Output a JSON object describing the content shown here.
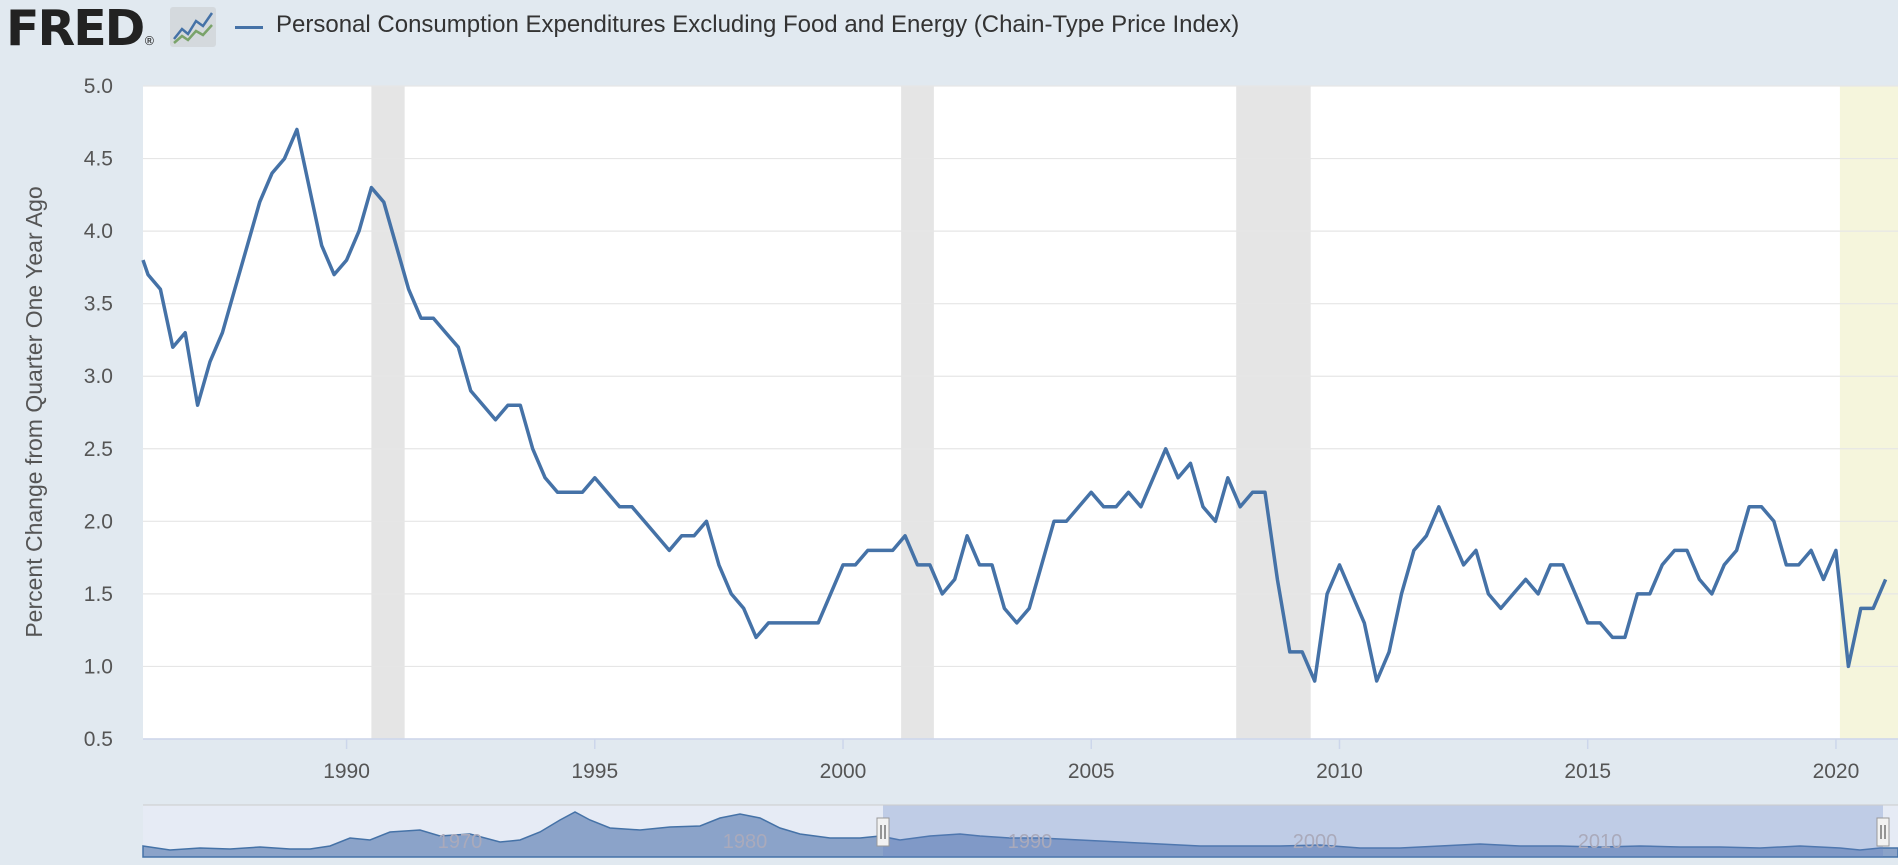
{
  "header": {
    "logo_text": "FRED",
    "logo_reg": "®",
    "logo_graph_icon": "line-chart-icon",
    "legend_title": "Personal Consumption Expenditures Excluding Food and Energy (Chain-Type Price Index)"
  },
  "colors": {
    "series": "#4572a7",
    "recession": "#e5e5e5",
    "highlight": "#f5f5dc",
    "grid": "#e6e6e6",
    "background": "#e1e9f0"
  },
  "chart_data": {
    "type": "line",
    "title": "Personal Consumption Expenditures Excluding Food and Energy (Chain-Type Price Index)",
    "xlabel": "",
    "ylabel": "Percent Change from Quarter One Year Ago",
    "xlim": [
      1985.9,
      2021.25
    ],
    "ylim": [
      0.5,
      5.0
    ],
    "y_ticks": [
      "0.5",
      "1.0",
      "1.5",
      "2.0",
      "2.5",
      "3.0",
      "3.5",
      "4.0",
      "4.5",
      "5.0"
    ],
    "x_ticks": [
      "1990",
      "1995",
      "2000",
      "2005",
      "2010",
      "2015",
      "2020"
    ],
    "grid": true,
    "legend_position": "top-left",
    "recessions": [
      [
        1990.5,
        1991.17
      ],
      [
        2001.17,
        2001.83
      ],
      [
        2007.92,
        2009.42
      ]
    ],
    "highlight_region": [
      2020.08,
      2021.25
    ],
    "series": [
      {
        "name": "Personal Consumption Expenditures Excluding Food and Energy (Chain-Type Price Index)",
        "x": [
          1985.9,
          1986.0,
          1986.25,
          1986.5,
          1986.75,
          1987.0,
          1987.25,
          1987.5,
          1987.75,
          1988.0,
          1988.25,
          1988.5,
          1988.75,
          1989.0,
          1989.25,
          1989.5,
          1989.75,
          1990.0,
          1990.25,
          1990.5,
          1990.75,
          1991.0,
          1991.25,
          1991.5,
          1991.75,
          1992.0,
          1992.25,
          1992.5,
          1992.75,
          1993.0,
          1993.25,
          1993.5,
          1993.75,
          1994.0,
          1994.25,
          1994.5,
          1994.75,
          1995.0,
          1995.25,
          1995.5,
          1995.75,
          1996.0,
          1996.25,
          1996.5,
          1996.75,
          1997.0,
          1997.25,
          1997.5,
          1997.75,
          1998.0,
          1998.25,
          1998.5,
          1998.75,
          1999.0,
          1999.25,
          1999.5,
          1999.75,
          2000.0,
          2000.25,
          2000.5,
          2000.75,
          2001.0,
          2001.25,
          2001.5,
          2001.75,
          2002.0,
          2002.25,
          2002.5,
          2002.75,
          2003.0,
          2003.25,
          2003.5,
          2003.75,
          2004.0,
          2004.25,
          2004.5,
          2004.75,
          2005.0,
          2005.25,
          2005.5,
          2005.75,
          2006.0,
          2006.25,
          2006.5,
          2006.75,
          2007.0,
          2007.25,
          2007.5,
          2007.75,
          2008.0,
          2008.25,
          2008.5,
          2008.75,
          2009.0,
          2009.25,
          2009.5,
          2009.75,
          2010.0,
          2010.25,
          2010.5,
          2010.75,
          2011.0,
          2011.25,
          2011.5,
          2011.75,
          2012.0,
          2012.25,
          2012.5,
          2012.75,
          2013.0,
          2013.25,
          2013.5,
          2013.75,
          2014.0,
          2014.25,
          2014.5,
          2014.75,
          2015.0,
          2015.25,
          2015.5,
          2015.75,
          2016.0,
          2016.25,
          2016.5,
          2016.75,
          2017.0,
          2017.25,
          2017.5,
          2017.75,
          2018.0,
          2018.25,
          2018.5,
          2018.75,
          2019.0,
          2019.25,
          2019.5,
          2019.75,
          2020.0,
          2020.25,
          2020.5,
          2020.75,
          2021.0
        ],
        "y": [
          3.8,
          3.7,
          3.6,
          3.2,
          3.3,
          2.8,
          3.1,
          3.3,
          3.6,
          3.9,
          4.2,
          4.4,
          4.5,
          4.7,
          4.3,
          3.9,
          3.7,
          3.8,
          4.0,
          4.3,
          4.2,
          3.9,
          3.6,
          3.4,
          3.4,
          3.3,
          3.2,
          2.9,
          2.8,
          2.7,
          2.8,
          2.8,
          2.5,
          2.3,
          2.2,
          2.2,
          2.2,
          2.3,
          2.2,
          2.1,
          2.1,
          2.0,
          1.9,
          1.8,
          1.9,
          1.9,
          2.0,
          1.7,
          1.5,
          1.4,
          1.2,
          1.3,
          1.3,
          1.3,
          1.3,
          1.3,
          1.5,
          1.7,
          1.7,
          1.8,
          1.8,
          1.8,
          1.9,
          1.7,
          1.7,
          1.5,
          1.6,
          1.9,
          1.7,
          1.7,
          1.4,
          1.3,
          1.4,
          1.7,
          2.0,
          2.0,
          2.1,
          2.2,
          2.1,
          2.1,
          2.2,
          2.1,
          2.3,
          2.5,
          2.3,
          2.4,
          2.1,
          2.0,
          2.3,
          2.1,
          2.2,
          2.2,
          1.6,
          1.1,
          1.1,
          0.9,
          1.5,
          1.7,
          1.5,
          1.3,
          0.9,
          1.1,
          1.5,
          1.8,
          1.9,
          2.1,
          1.9,
          1.7,
          1.8,
          1.5,
          1.4,
          1.5,
          1.6,
          1.5,
          1.7,
          1.7,
          1.5,
          1.3,
          1.3,
          1.2,
          1.2,
          1.5,
          1.5,
          1.7,
          1.8,
          1.8,
          1.6,
          1.5,
          1.7,
          1.8,
          2.1,
          2.1,
          2.0,
          1.7,
          1.7,
          1.8,
          1.6,
          1.8,
          1.0,
          1.4,
          1.4,
          1.6
        ]
      }
    ]
  },
  "navigator": {
    "labels": [
      "1970",
      "1980",
      "1990",
      "2000",
      "2010"
    ],
    "handle_left_icon": "drag-handle-icon",
    "handle_right_icon": "drag-handle-icon"
  }
}
